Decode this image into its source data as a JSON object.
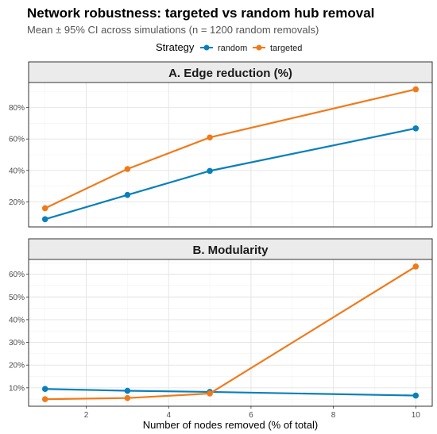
{
  "chart_data": {
    "type": "line",
    "title": "Network robustness: targeted vs random hub removal",
    "subtitle": "Mean ± 95% CI across simulations (n = 1200 random removals)",
    "xlabel": "Number of nodes removed (% of total)",
    "x_ticks": [
      "2",
      "4",
      "6",
      "8",
      "10"
    ],
    "x_tick_values": [
      2,
      4,
      6,
      8,
      10
    ],
    "xlim": [
      0.6,
      10.4
    ],
    "grid": true,
    "legend": {
      "title": "Strategy",
      "position": "top",
      "entries": [
        {
          "name": "random",
          "color": "#0a7fba"
        },
        {
          "name": "targeted",
          "color": "#f07a1a"
        }
      ]
    },
    "panels": [
      {
        "title": "A. Edge reduction (%)",
        "ylim": [
          4,
          96
        ],
        "y_ticks": [
          "20%",
          "40%",
          "60%",
          "80%"
        ],
        "y_tick_values": [
          20,
          40,
          60,
          80
        ],
        "x": [
          1,
          3,
          5,
          10
        ],
        "series": [
          {
            "name": "random",
            "color": "#0a7fba",
            "values": [
              8.9,
              24.4,
              39.7,
              66.8
            ]
          },
          {
            "name": "targeted",
            "color": "#f07a1a",
            "values": [
              15.9,
              40.9,
              61.0,
              91.7
            ]
          }
        ]
      },
      {
        "title": "B. Modularity",
        "ylim": [
          1.9,
          66.5
        ],
        "y_ticks": [
          "10%",
          "20%",
          "30%",
          "40%",
          "50%",
          "60%"
        ],
        "y_tick_values": [
          10,
          20,
          30,
          40,
          50,
          60
        ],
        "x": [
          1,
          3,
          5,
          10
        ],
        "series": [
          {
            "name": "random",
            "color": "#0a7fba",
            "values": [
              9.5,
              8.7,
              8.2,
              6.6
            ]
          },
          {
            "name": "targeted",
            "color": "#f07a1a",
            "values": [
              5.0,
              5.5,
              7.5,
              63.4
            ]
          }
        ]
      }
    ]
  }
}
